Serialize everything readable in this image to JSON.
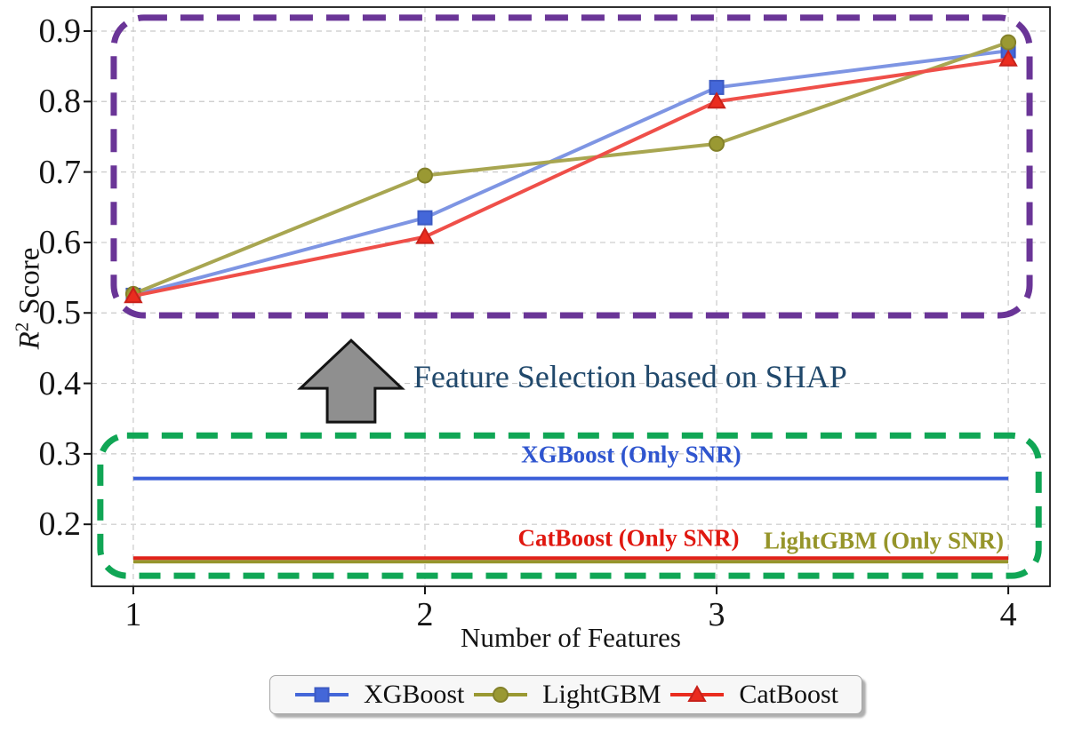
{
  "chart_data": {
    "type": "line",
    "title": "",
    "xlabel": "Number of Features",
    "ylabel": "R² Score",
    "ylabel_parts": {
      "r": "R",
      "sup": "2",
      "rest": "Score"
    },
    "x": [
      1,
      2,
      3,
      4
    ],
    "xticks": [
      1,
      2,
      3,
      4
    ],
    "yticks": [
      0.2,
      0.3,
      0.4,
      0.5,
      0.6,
      0.7,
      0.8,
      0.9
    ],
    "xlim": [
      0.857,
      4.143
    ],
    "ylim": [
      0.112,
      0.934
    ],
    "grid": true,
    "legend_position": "bottom-center",
    "series": [
      {
        "name": "XGBoost",
        "marker": "square",
        "color": "#4467d9",
        "line_color": "#7e95e3",
        "edge_color": "#3c5ac2",
        "values": [
          0.525,
          0.635,
          0.82,
          0.872
        ]
      },
      {
        "name": "LightGBM",
        "marker": "circle",
        "color": "#9a9933",
        "line_color": "#a8a651",
        "edge_color": "#83812a",
        "values": [
          0.527,
          0.695,
          0.74,
          0.884
        ]
      },
      {
        "name": "CatBoost",
        "marker": "triangle",
        "color": "#ea2c1f",
        "line_color": "#ef4f49",
        "edge_color": "#c8211a",
        "values": [
          0.524,
          0.608,
          0.8,
          0.86
        ]
      }
    ],
    "baselines": [
      {
        "name": "XGBoost (Only SNR)",
        "value": 0.265,
        "color": "#3b5ed8",
        "label_color": "#2f55cf",
        "label_x": 2.707,
        "label_y": 0.298
      },
      {
        "name": "LightGBM (Only SNR)",
        "value": 0.147,
        "color": "#96952c",
        "label_color": "#96952a",
        "label_x": 3.573,
        "label_y": 0.176
      },
      {
        "name": "CatBoost (Only SNR)",
        "value": 0.152,
        "color": "#e0221a",
        "label_color": "#e01810",
        "label_x": 2.698,
        "label_y": 0.18
      }
    ],
    "annotations": {
      "text": {
        "label": "Feature Selection based on SHAP",
        "color": "#20486b",
        "x": 1.96,
        "y": 0.409
      },
      "arrow": {
        "cx": 1.747,
        "tip_y": 0.461,
        "head_y": 0.393,
        "base_y": 0.345,
        "head_halfwidth_x": 0.174,
        "shaft_halfwidth_x": 0.082,
        "fill": "#8f8f8f",
        "outline": "#141414"
      },
      "purple_box": {
        "x0": 0.933,
        "x1": 4.073,
        "y0": 0.4965,
        "y1": 0.919,
        "color": "#6a3597"
      },
      "green_box": {
        "x0": 0.887,
        "x1": 4.104,
        "y0": 0.127,
        "y1": 0.326,
        "color": "#10a655"
      }
    },
    "colors": {
      "grid": "#c9c9c9",
      "spine": "#1a1a1a",
      "tick": "#141414"
    }
  }
}
